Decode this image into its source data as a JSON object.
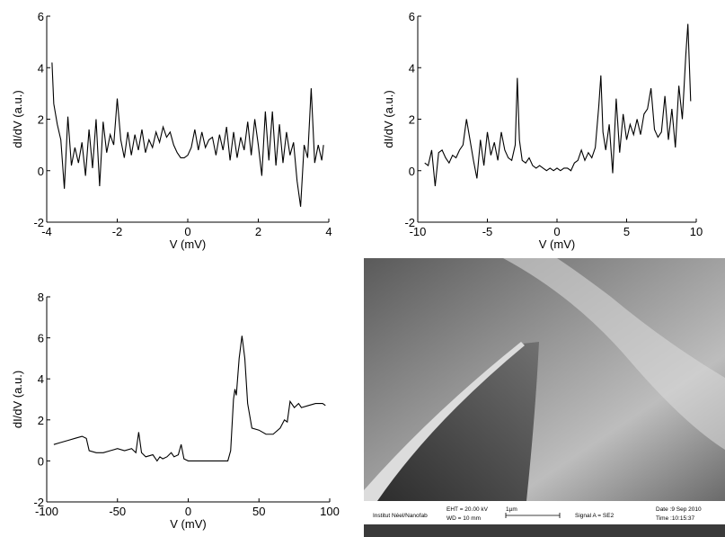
{
  "chart_data": [
    {
      "type": "line",
      "xlabel": "V (mV)",
      "ylabel": "dI/dV (a.u.)",
      "color": "#000000",
      "xlim": [
        -4,
        4
      ],
      "ylim": [
        -2,
        6
      ],
      "xticks": [
        -4,
        -2,
        0,
        2,
        4
      ],
      "yticks": [
        -2,
        0,
        2,
        4,
        6
      ],
      "x": [
        -3.85,
        -3.8,
        -3.7,
        -3.6,
        -3.5,
        -3.4,
        -3.3,
        -3.2,
        -3.1,
        -3.0,
        -2.9,
        -2.8,
        -2.7,
        -2.6,
        -2.5,
        -2.4,
        -2.3,
        -2.2,
        -2.1,
        -2.0,
        -1.9,
        -1.8,
        -1.7,
        -1.6,
        -1.5,
        -1.4,
        -1.3,
        -1.2,
        -1.1,
        -1.0,
        -0.9,
        -0.8,
        -0.7,
        -0.6,
        -0.5,
        -0.4,
        -0.3,
        -0.2,
        -0.1,
        0.0,
        0.1,
        0.2,
        0.3,
        0.4,
        0.5,
        0.6,
        0.7,
        0.8,
        0.9,
        1.0,
        1.1,
        1.2,
        1.3,
        1.4,
        1.5,
        1.6,
        1.7,
        1.8,
        1.9,
        2.0,
        2.1,
        2.2,
        2.3,
        2.4,
        2.5,
        2.6,
        2.7,
        2.8,
        2.9,
        3.0,
        3.1,
        3.2,
        3.3,
        3.4,
        3.5,
        3.6,
        3.7,
        3.8,
        3.85
      ],
      "values": [
        4.2,
        2.6,
        1.8,
        1.2,
        -0.7,
        2.1,
        0.2,
        0.9,
        0.3,
        1.1,
        -0.2,
        1.6,
        0.1,
        2.0,
        -0.6,
        1.9,
        0.7,
        1.4,
        1.0,
        2.8,
        1.2,
        0.5,
        1.5,
        0.6,
        1.4,
        0.8,
        1.6,
        0.7,
        1.2,
        0.9,
        1.5,
        1.1,
        1.7,
        1.3,
        1.5,
        1.0,
        0.7,
        0.5,
        0.5,
        0.6,
        0.9,
        1.6,
        0.8,
        1.5,
        0.9,
        1.2,
        1.3,
        0.6,
        1.4,
        0.8,
        1.7,
        0.4,
        1.5,
        0.5,
        1.3,
        0.8,
        1.9,
        0.6,
        2.0,
        1.0,
        -0.2,
        2.3,
        0.4,
        2.3,
        0.2,
        1.8,
        0.3,
        1.5,
        0.6,
        1.1,
        -0.4,
        -1.4,
        1.0,
        0.5,
        3.2,
        0.3,
        1.0,
        0.4,
        1.0
      ]
    },
    {
      "type": "line",
      "xlabel": "V (mV)",
      "ylabel": "dI/dV (a.u.)",
      "color": "#000000",
      "xlim": [
        -10,
        10
      ],
      "ylim": [
        -2,
        6
      ],
      "xticks": [
        -10,
        -5,
        0,
        5,
        10
      ],
      "yticks": [
        -2,
        0,
        2,
        4,
        6
      ],
      "x": [
        -9.5,
        -9.25,
        -9,
        -8.75,
        -8.5,
        -8.25,
        -8,
        -7.75,
        -7.5,
        -7.25,
        -7,
        -6.75,
        -6.5,
        -6.25,
        -6,
        -5.75,
        -5.5,
        -5.25,
        -5,
        -4.75,
        -4.5,
        -4.25,
        -4,
        -3.75,
        -3.5,
        -3.25,
        -3,
        -2.85,
        -2.7,
        -2.5,
        -2.25,
        -2,
        -1.75,
        -1.5,
        -1.25,
        -1,
        -0.75,
        -0.5,
        -0.25,
        0,
        0.25,
        0.5,
        0.75,
        1,
        1.25,
        1.5,
        1.75,
        2,
        2.25,
        2.5,
        2.75,
        3,
        3.15,
        3.3,
        3.5,
        3.75,
        4,
        4.25,
        4.5,
        4.75,
        5,
        5.25,
        5.5,
        5.75,
        6,
        6.25,
        6.5,
        6.75,
        7,
        7.25,
        7.5,
        7.75,
        8,
        8.25,
        8.5,
        8.75,
        9,
        9.25,
        9.4,
        9.6
      ],
      "values": [
        0.3,
        0.2,
        0.8,
        -0.6,
        0.7,
        0.8,
        0.5,
        0.3,
        0.6,
        0.5,
        0.8,
        1.0,
        2.0,
        1.2,
        0.4,
        -0.3,
        1.2,
        0.2,
        1.5,
        0.6,
        1.1,
        0.4,
        1.5,
        0.8,
        0.5,
        0.4,
        1.0,
        3.6,
        1.2,
        0.4,
        0.3,
        0.5,
        0.2,
        0.1,
        0.2,
        0.1,
        0.0,
        0.1,
        0.0,
        0.1,
        0.0,
        0.1,
        0.1,
        0.0,
        0.3,
        0.4,
        0.8,
        0.4,
        0.7,
        0.5,
        0.9,
        2.5,
        3.7,
        1.5,
        0.8,
        1.8,
        -0.1,
        2.8,
        0.7,
        2.2,
        1.2,
        1.8,
        1.4,
        2.0,
        1.4,
        2.2,
        2.4,
        3.2,
        1.6,
        1.3,
        1.5,
        2.9,
        1.2,
        2.4,
        0.9,
        3.3,
        2.0,
        4.5,
        5.7,
        2.7
      ]
    },
    {
      "type": "line",
      "xlabel": "V (mV)",
      "ylabel": "dI/dV (a.u.)",
      "color": "#000000",
      "xlim": [
        -100,
        100
      ],
      "ylim": [
        -2,
        8
      ],
      "xticks": [
        -100,
        -50,
        0,
        50,
        100
      ],
      "yticks": [
        -2,
        0,
        2,
        4,
        6,
        8
      ],
      "x": [
        -95,
        -90,
        -85,
        -80,
        -75,
        -72,
        -70,
        -65,
        -60,
        -55,
        -50,
        -45,
        -40,
        -37,
        -35,
        -33,
        -30,
        -25,
        -22,
        -20,
        -18,
        -15,
        -12,
        -10,
        -7,
        -5,
        -3,
        0,
        10,
        20,
        28,
        30,
        32,
        33,
        34,
        36,
        38,
        40,
        42,
        45,
        50,
        55,
        60,
        65,
        68,
        70,
        72,
        75,
        78,
        80,
        85,
        90,
        95,
        97
      ],
      "values": [
        0.8,
        0.9,
        1.0,
        1.1,
        1.2,
        1.1,
        0.5,
        0.4,
        0.4,
        0.5,
        0.6,
        0.5,
        0.6,
        0.4,
        1.4,
        0.4,
        0.2,
        0.3,
        0.0,
        0.2,
        0.1,
        0.2,
        0.4,
        0.2,
        0.3,
        0.8,
        0.1,
        0.0,
        0.0,
        0.0,
        0.0,
        0.5,
        3.0,
        3.5,
        3.2,
        5.0,
        6.1,
        5.0,
        2.8,
        1.6,
        1.5,
        1.3,
        1.3,
        1.6,
        2.0,
        1.9,
        2.9,
        2.6,
        2.8,
        2.6,
        2.7,
        2.8,
        2.8,
        2.7
      ]
    }
  ],
  "sem_info": {
    "institute": "Institut Néel/Nanofab",
    "eht": "EHT = 20.00 kV",
    "wd": "WD =  10 mm",
    "scale": "1µm",
    "signal": "Signal A = SE2",
    "date": "Date :9 Sep 2010",
    "time": "Time :10:15:37"
  }
}
